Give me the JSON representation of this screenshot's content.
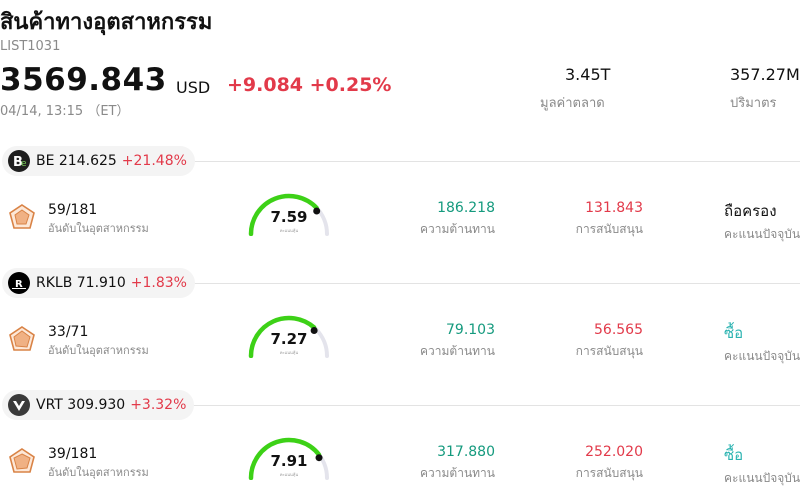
{
  "header": {
    "title": "สินค้าทางอุตสาหกรรม",
    "code": "LIST1031",
    "price": "3569.843",
    "currency": "USD",
    "change": "+9.084 +0.25%",
    "time": "04/14, 13:15 （ET）",
    "market_cap_value": "3.45T",
    "market_cap_label": "มูลค่าตลาด",
    "volume_value": "357.27M",
    "volume_label": "ปริมาตร"
  },
  "colors": {
    "up_red": "#e23a4a",
    "green": "#159a7e",
    "buy_teal": "#2bb3b1",
    "gauge_green": "#3dd117"
  },
  "rows": [
    {
      "symbol_price": "BE 214.625",
      "change_pct": "+21.48%",
      "logo_icon": "bloom-energy-logo",
      "logo_text": "Be",
      "rank": "59/181",
      "rank_label": "อันดับในอุตสาหกรรม",
      "score": "7.59",
      "score_label": "คะแนนหุ้น",
      "score_fraction": 0.76,
      "resistance": "186.218",
      "resistance_label": "ความต้านทาน",
      "support": "131.843",
      "support_label": "การสนับสนุน",
      "rating": "ถือครอง",
      "rating_color": "#111111",
      "rating_label": "คะแนนปัจจุบัน"
    },
    {
      "symbol_price": "RKLB 71.910",
      "change_pct": "+1.83%",
      "logo_icon": "rocket-lab-logo",
      "logo_text": "R",
      "rank": "33/71",
      "rank_label": "อันดับในอุตสาหกรรม",
      "score": "7.27",
      "score_label": "คะแนนหุ้น",
      "score_fraction": 0.73,
      "resistance": "79.103",
      "resistance_label": "ความต้านทาน",
      "support": "56.565",
      "support_label": "การสนับสนุน",
      "rating": "ซื้อ",
      "rating_color": "#2bb3b1",
      "rating_label": "คะแนนปัจจุบัน"
    },
    {
      "symbol_price": "VRT 309.930",
      "change_pct": "+3.32%",
      "logo_icon": "vertiv-logo",
      "logo_text": "",
      "rank": "39/181",
      "rank_label": "อันดับในอุตสาหกรรม",
      "score": "7.91",
      "score_label": "คะแนนหุ้น",
      "score_fraction": 0.79,
      "resistance": "317.880",
      "resistance_label": "ความต้านทาน",
      "support": "252.020",
      "support_label": "การสนับสนุน",
      "rating": "ซื้อ",
      "rating_color": "#2bb3b1",
      "rating_label": "คะแนนปัจจุบัน"
    }
  ]
}
